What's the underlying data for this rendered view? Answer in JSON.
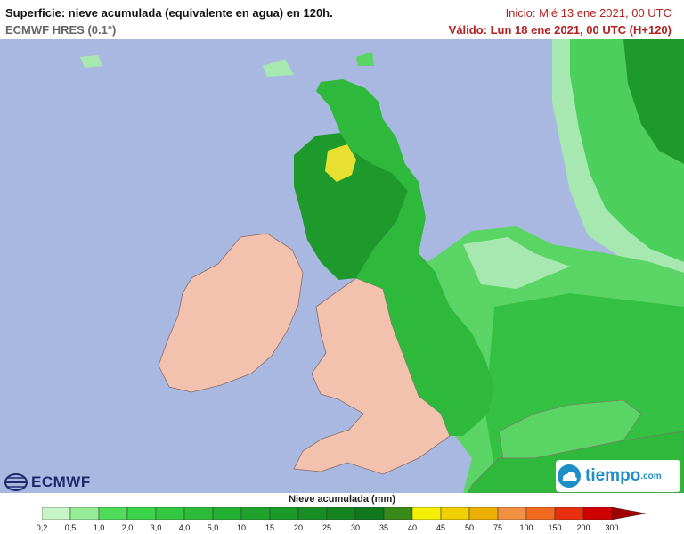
{
  "header": {
    "title": "Superficie: nieve acumulada (equivalente en agua) en 120h.",
    "model": "ECMWF HRES (0.1°)",
    "start": "Inicio: Mié 13 ene 2021, 00 UTC",
    "valid": "Válido: Lun 18 ene 2021, 00 UTC (H+120)"
  },
  "legend": {
    "title": "Nieve acumulada (mm)",
    "ticks": [
      "0,2",
      "0,5",
      "1,0",
      "2,0",
      "3,0",
      "4,0",
      "5,0",
      "10",
      "15",
      "20",
      "25",
      "30",
      "35",
      "40",
      "45",
      "50",
      "75",
      "100",
      "150",
      "200",
      "300"
    ],
    "colors": [
      "#c8f5c8",
      "#96ec96",
      "#4fdc5a",
      "#3cd44a",
      "#34c842",
      "#2cbc3a",
      "#24b032",
      "#1ea42c",
      "#1a9a28",
      "#178e24",
      "#148420",
      "#10781c",
      "#3a8a1a",
      "#f4f000",
      "#f0d000",
      "#ecb000",
      "#f09040",
      "#f06a20",
      "#e83010",
      "#d00000",
      "#a00000"
    ]
  },
  "logos": {
    "ecmwf": "ECMWF",
    "tiempo": "tiempo",
    "tiempo_suffix": ".com"
  },
  "colors": {
    "sea": "#a8b8e0",
    "land_no_snow": "#f2c2ae",
    "border": "#a07878"
  }
}
